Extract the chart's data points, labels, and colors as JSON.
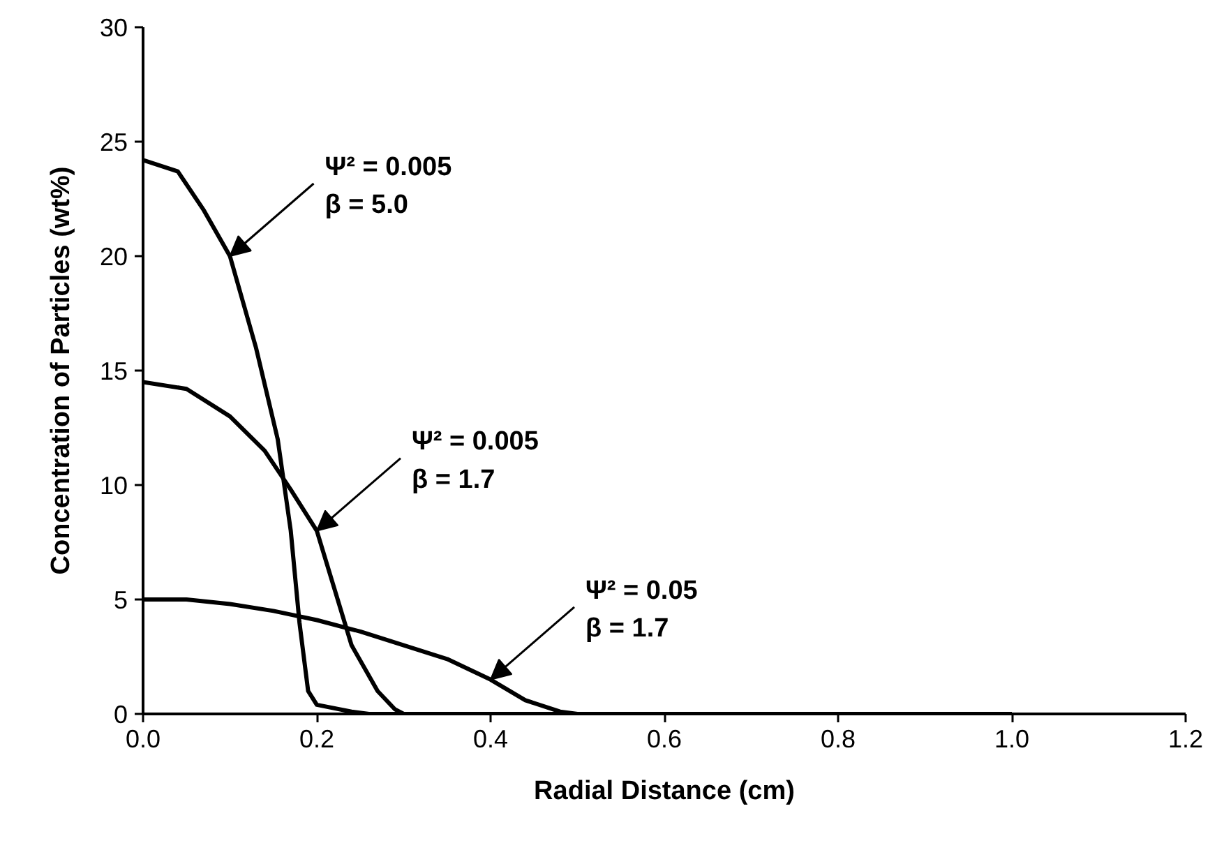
{
  "chart_data": {
    "type": "line",
    "xlabel": "Radial Distance (cm)",
    "ylabel": "Concentration of Particles (wt%)",
    "xlim": [
      0,
      1.2
    ],
    "ylim": [
      0,
      30
    ],
    "xticks": [
      {
        "value": 0,
        "label": "0.0"
      },
      {
        "value": 0.2,
        "label": "0.2"
      },
      {
        "value": 0.4,
        "label": "0.4"
      },
      {
        "value": 0.6,
        "label": "0.6"
      },
      {
        "value": 0.8,
        "label": "0.8"
      },
      {
        "value": 1.0,
        "label": "1.0"
      },
      {
        "value": 1.2,
        "label": "1.2"
      }
    ],
    "yticks": [
      0,
      5,
      10,
      15,
      20,
      25,
      30
    ],
    "grid": false,
    "marker": "none",
    "line_style": "solid",
    "series": [
      {
        "color": "#000000",
        "x": [
          0,
          0.04,
          0.07,
          0.1,
          0.13,
          0.155,
          0.17,
          0.18,
          0.19,
          0.2,
          0.24,
          0.26,
          1.0
        ],
        "values": [
          24.2,
          23.7,
          22,
          20,
          16,
          12,
          8,
          4,
          1,
          0.4,
          0.1,
          0,
          0
        ]
      },
      {
        "color": "#000000",
        "x": [
          0,
          0.05,
          0.1,
          0.14,
          0.17,
          0.2,
          0.22,
          0.24,
          0.27,
          0.29,
          0.3,
          1.0
        ],
        "values": [
          14.5,
          14.2,
          13,
          11.5,
          9.8,
          8,
          5.5,
          3,
          1,
          0.2,
          0,
          0
        ]
      },
      {
        "color": "#000000",
        "x": [
          0,
          0.05,
          0.1,
          0.15,
          0.2,
          0.25,
          0.3,
          0.35,
          0.4,
          0.44,
          0.48,
          0.5,
          1.0
        ],
        "values": [
          5,
          5,
          4.8,
          4.5,
          4.1,
          3.6,
          3,
          2.4,
          1.5,
          0.6,
          0.1,
          0,
          0
        ]
      }
    ],
    "annotations": [
      {
        "text": "Ψ² = 0.005\nβ = 5.0",
        "x": 0.1,
        "y": 20
      },
      {
        "text": "Ψ² = 0.005\nβ = 1.7",
        "x": 0.2,
        "y": 8
      },
      {
        "text": "Ψ² = 0.05\nβ = 1.7",
        "x": 0.4,
        "y": 1.5
      }
    ]
  }
}
